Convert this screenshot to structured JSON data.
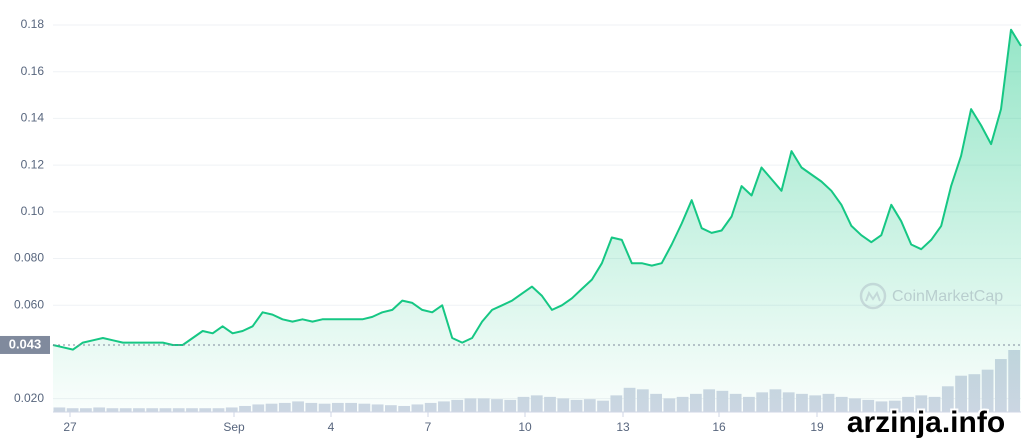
{
  "chart_data": {
    "type": "line",
    "color": "#16c784",
    "values": [
      0.043,
      0.042,
      0.041,
      0.044,
      0.045,
      0.046,
      0.045,
      0.044,
      0.044,
      0.044,
      0.044,
      0.044,
      0.043,
      0.043,
      0.046,
      0.049,
      0.048,
      0.051,
      0.048,
      0.049,
      0.051,
      0.057,
      0.056,
      0.054,
      0.053,
      0.054,
      0.053,
      0.054,
      0.054,
      0.054,
      0.054,
      0.054,
      0.055,
      0.057,
      0.058,
      0.062,
      0.061,
      0.058,
      0.057,
      0.06,
      0.046,
      0.044,
      0.046,
      0.053,
      0.058,
      0.06,
      0.062,
      0.065,
      0.068,
      0.064,
      0.058,
      0.06,
      0.063,
      0.067,
      0.071,
      0.078,
      0.089,
      0.088,
      0.078,
      0.078,
      0.077,
      0.078,
      0.086,
      0.095,
      0.105,
      0.093,
      0.091,
      0.092,
      0.098,
      0.111,
      0.107,
      0.119,
      0.114,
      0.109,
      0.126,
      0.119,
      0.116,
      0.113,
      0.109,
      0.103,
      0.094,
      0.09,
      0.087,
      0.09,
      0.103,
      0.096,
      0.086,
      0.084,
      0.088,
      0.094,
      0.111,
      0.124,
      0.144,
      0.137,
      0.129,
      0.144,
      0.178,
      0.171
    ],
    "volume_values": [
      6,
      5,
      5,
      6,
      5,
      5,
      5,
      5,
      5,
      5,
      5,
      5,
      5,
      6,
      8,
      10,
      11,
      12,
      14,
      12,
      11,
      12,
      12,
      11,
      10,
      9,
      8,
      10,
      12,
      14,
      16,
      18,
      18,
      17,
      16,
      20,
      22,
      20,
      18,
      16,
      17,
      15,
      22,
      32,
      30,
      24,
      18,
      20,
      24,
      30,
      28,
      24,
      20,
      26,
      30,
      26,
      24,
      22,
      24,
      20,
      18,
      16,
      14,
      15,
      20,
      22,
      20,
      34,
      48,
      50,
      56,
      70,
      82
    ],
    "ylim": [
      0.0143,
      0.1907
    ],
    "yticks": [
      {
        "value": 0.02,
        "label": "0.020"
      },
      {
        "value": 0.06,
        "label": "0.060"
      },
      {
        "value": 0.08,
        "label": "0.080"
      },
      {
        "value": 0.1,
        "label": "0.10"
      },
      0.12,
      0.14,
      0.16,
      0.18
    ],
    "grid": true,
    "current_value": 0.043,
    "xtick_labels": [
      "27",
      "Sep",
      "4",
      "7",
      "10",
      "13",
      "16",
      "19"
    ],
    "watermark": "CoinMarketCap",
    "overlay_text": "arzinja.info"
  }
}
